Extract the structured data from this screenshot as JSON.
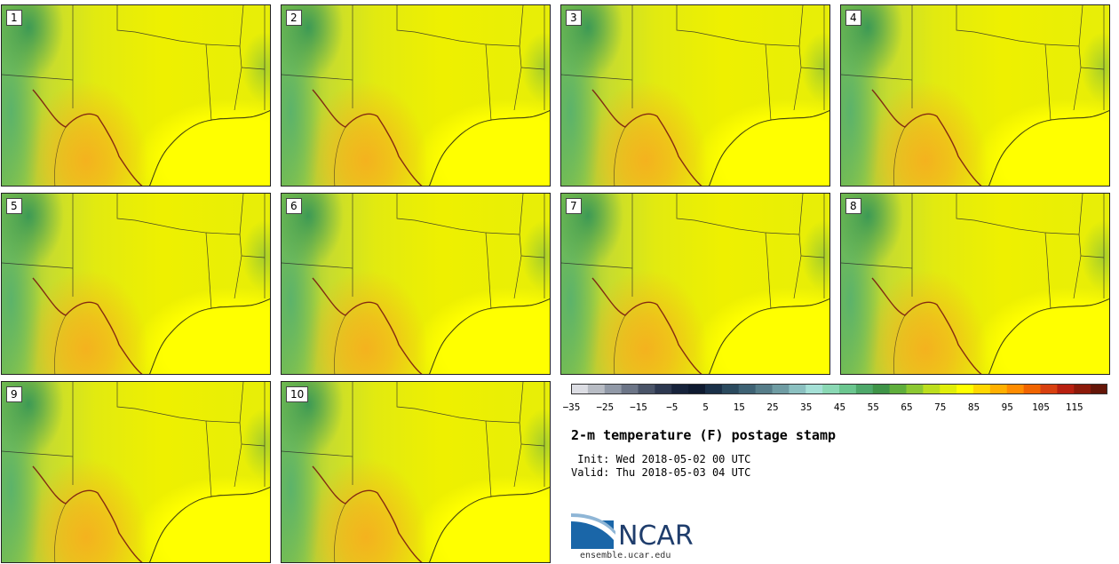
{
  "panels": [
    {
      "label": "1"
    },
    {
      "label": "2"
    },
    {
      "label": "3"
    },
    {
      "label": "4"
    },
    {
      "label": "5"
    },
    {
      "label": "6"
    },
    {
      "label": "7"
    },
    {
      "label": "8"
    },
    {
      "label": "9"
    },
    {
      "label": "10"
    }
  ],
  "title": "2-m temperature (F) postage stamp",
  "init_text": " Init: Wed 2018-05-02 00 UTC",
  "valid_text": "Valid: Thu 2018-05-03 04 UTC",
  "colorbar": {
    "ticks": [
      "−35",
      "−25",
      "−15",
      "−5",
      "5",
      "15",
      "25",
      "35",
      "45",
      "55",
      "65",
      "75",
      "85",
      "95",
      "105",
      "115"
    ],
    "colors": [
      "#dcdde3",
      "#b8bcc4",
      "#9199a7",
      "#6c7587",
      "#4a5468",
      "#2d3850",
      "#17233b",
      "#0e1a30",
      "#1a3048",
      "#2b4a5e",
      "#3e6274",
      "#567d89",
      "#6f9ca3",
      "#8bc0c0",
      "#a5e0d6",
      "#8ad8b4",
      "#6bc68f",
      "#4ea86a",
      "#3f9448",
      "#5fae3c",
      "#8cc832",
      "#bcde1e",
      "#e0ee0a",
      "#ffff00",
      "#ffd700",
      "#ffb000",
      "#ff8c00",
      "#f06400",
      "#d84010",
      "#b82010",
      "#8c1a0a",
      "#641608"
    ]
  },
  "logo": {
    "text": "NCAR",
    "url": "ensemble.ucar.edu"
  }
}
